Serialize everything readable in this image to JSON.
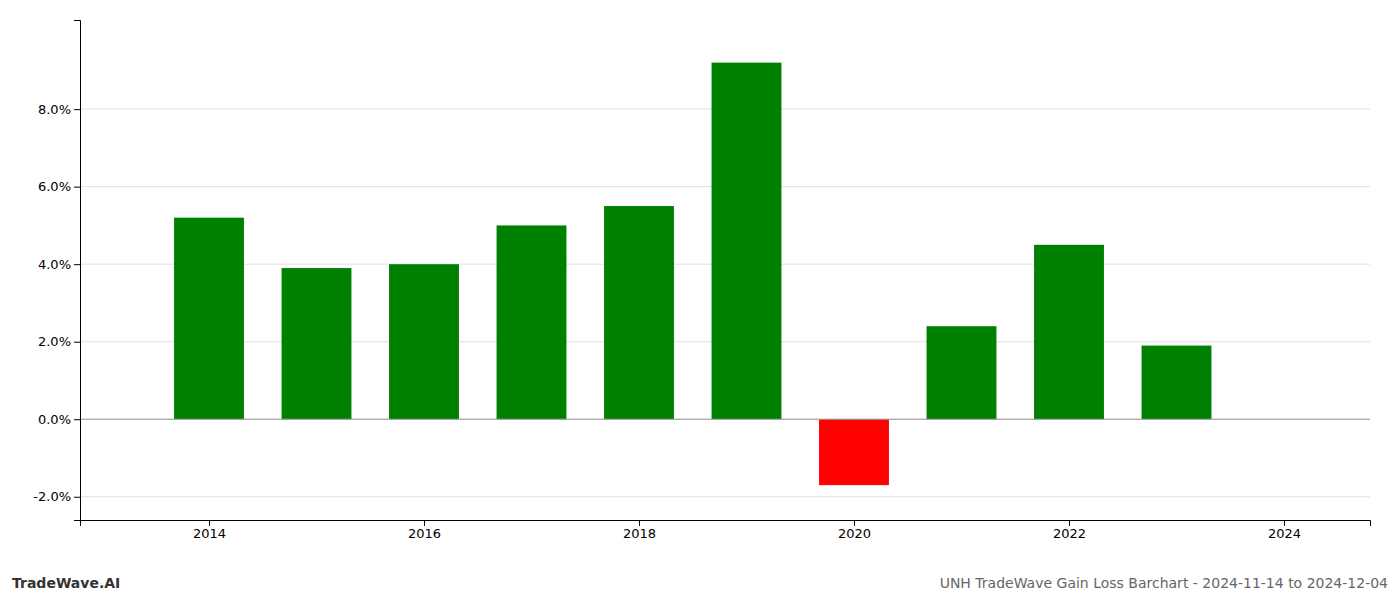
{
  "chart_data": {
    "type": "bar",
    "title": "UNH TradeWave Gain Loss Barchart - 2024-11-14 to 2024-12-04",
    "annotations": [
      "TradeWave.AI"
    ],
    "x": [
      2014,
      2015,
      2016,
      2017,
      2018,
      2019,
      2020,
      2021,
      2022,
      2023
    ],
    "values": [
      0.052,
      0.039,
      0.04,
      0.05,
      0.055,
      0.092,
      -0.017,
      0.024,
      0.045,
      0.019
    ],
    "colors": [
      "#008000",
      "#008000",
      "#008000",
      "#008000",
      "#008000",
      "#008000",
      "#ff0000",
      "#008000",
      "#008000",
      "#008000"
    ],
    "xlim": [
      2012.8,
      2024.8
    ],
    "xticks": [
      2014,
      2016,
      2018,
      2020,
      2022,
      2024
    ],
    "ylim": [
      -0.026,
      0.103
    ],
    "yticks": [
      {
        "value": -0.02,
        "label": "-2.0%"
      },
      {
        "value": 0.0,
        "label": "0.0%"
      },
      {
        "value": 0.02,
        "label": "2.0%"
      },
      {
        "value": 0.04,
        "label": "4.0%"
      },
      {
        "value": 0.06,
        "label": "6.0%"
      },
      {
        "value": 0.08,
        "label": "8.0%"
      }
    ],
    "grid": true
  }
}
